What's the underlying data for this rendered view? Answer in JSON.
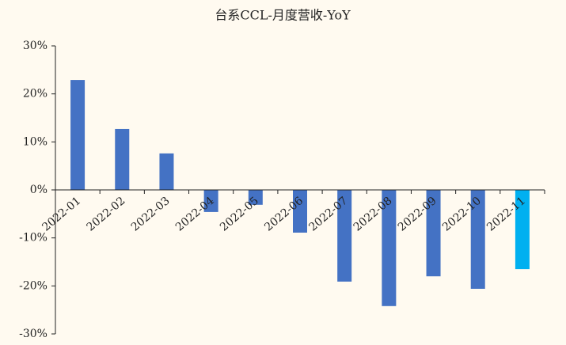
{
  "chart_data": {
    "type": "bar",
    "title": "台系CCL-月度营收-YoY",
    "categories": [
      "2022-01",
      "2022-02",
      "2022-03",
      "2022-04",
      "2022-05",
      "2022-06",
      "2022-07",
      "2022-08",
      "2022-09",
      "2022-10",
      "2022-11"
    ],
    "values": [
      22.9,
      12.7,
      7.6,
      -4.6,
      -3.1,
      -8.9,
      -19.1,
      -24.2,
      -18.0,
      -20.6,
      -16.5
    ],
    "colors": [
      "#4472c4",
      "#4472c4",
      "#4472c4",
      "#4472c4",
      "#4472c4",
      "#4472c4",
      "#4472c4",
      "#4472c4",
      "#4472c4",
      "#4472c4",
      "#00b0f0"
    ],
    "ylim": [
      -30,
      30
    ],
    "yticks": [
      {
        "value": -30,
        "label": "-30%"
      },
      {
        "value": -20,
        "label": "-20%"
      },
      {
        "value": -10,
        "label": "-10%"
      },
      {
        "value": 0,
        "label": "0%"
      },
      {
        "value": 10,
        "label": "10%"
      },
      {
        "value": 20,
        "label": "20%"
      },
      {
        "value": 30,
        "label": "30%"
      }
    ],
    "grid": false
  }
}
